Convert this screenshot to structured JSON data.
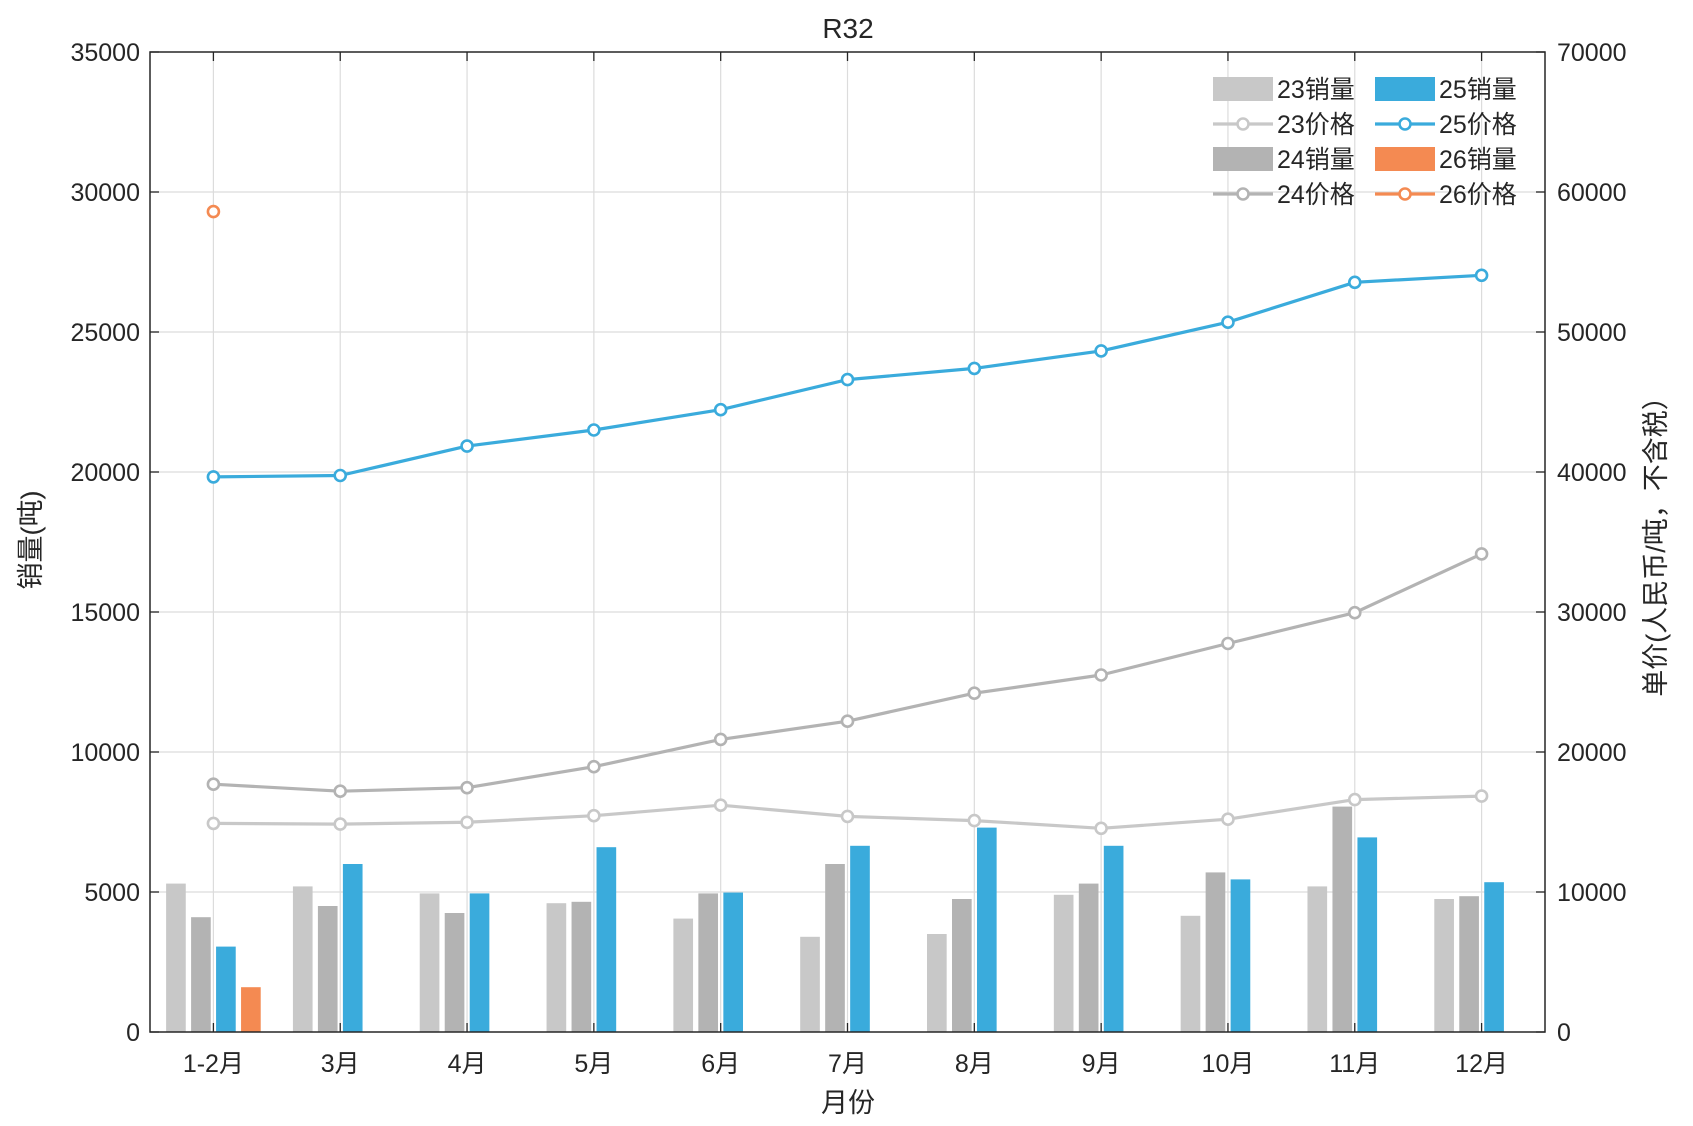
{
  "chart_data": {
    "type": "bar+line",
    "title": "R32",
    "xlabel": "月份",
    "ylabel_left": "销量(吨)",
    "ylabel_right": "单价(人民币/吨，不含税）",
    "categories": [
      "1-2月",
      "3月",
      "4月",
      "5月",
      "6月",
      "7月",
      "8月",
      "9月",
      "10月",
      "11月",
      "12月"
    ],
    "ylim_left": [
      0,
      35000
    ],
    "ylim_right": [
      0,
      70000
    ],
    "yticks_left": [
      "0",
      "5000",
      "10000",
      "15000",
      "20000",
      "25000",
      "30000",
      "35000"
    ],
    "yticks_right": [
      "0",
      "10000",
      "20000",
      "30000",
      "40000",
      "50000",
      "60000",
      "70000"
    ],
    "grid": true,
    "legend_position": "top-right",
    "bar_series": [
      {
        "name": "23销量",
        "color": "#c8c8c8",
        "values": [
          5300,
          5200,
          4950,
          4600,
          4050,
          3400,
          3500,
          4900,
          4150,
          5200,
          4750
        ]
      },
      {
        "name": "24销量",
        "color": "#b3b3b3",
        "values": [
          4100,
          4500,
          4250,
          4650,
          4950,
          6000,
          4750,
          5300,
          5700,
          8050,
          4850
        ]
      },
      {
        "name": "25销量",
        "color": "#3aabdc",
        "values": [
          3050,
          6000,
          4950,
          6600,
          4980,
          6650,
          7300,
          6650,
          5450,
          6950,
          5350
        ]
      },
      {
        "name": "26销量",
        "color": "#f48a52",
        "values": [
          1600,
          null,
          null,
          null,
          null,
          null,
          null,
          null,
          null,
          null,
          null
        ]
      }
    ],
    "line_series": [
      {
        "name": "23价格",
        "color": "#c8c8c8",
        "values": [
          14900,
          14850,
          14980,
          15450,
          16200,
          15400,
          15100,
          14550,
          15200,
          16600,
          16850
        ]
      },
      {
        "name": "24价格",
        "color": "#b3b3b3",
        "values": [
          17700,
          17200,
          17450,
          18950,
          20900,
          22200,
          24200,
          25500,
          27750,
          29950,
          34150
        ]
      },
      {
        "name": "25价格",
        "color": "#3aabdc",
        "values": [
          39650,
          39750,
          41850,
          43000,
          44450,
          46600,
          47400,
          48650,
          50700,
          53550,
          54050
        ]
      },
      {
        "name": "26价格",
        "color": "#f48a52",
        "values": [
          58600,
          null,
          null,
          null,
          null,
          null,
          null,
          null,
          null,
          null,
          null
        ]
      }
    ],
    "legend": [
      {
        "label": "23销量",
        "series": "23销量",
        "kind": "bar"
      },
      {
        "label": "25销量",
        "series": "25销量",
        "kind": "bar"
      },
      {
        "label": "23价格",
        "series": "23价格",
        "kind": "line"
      },
      {
        "label": "25价格",
        "series": "25价格",
        "kind": "line"
      },
      {
        "label": "24销量",
        "series": "24销量",
        "kind": "bar"
      },
      {
        "label": "26销量",
        "series": "26销量",
        "kind": "bar"
      },
      {
        "label": "24价格",
        "series": "24价格",
        "kind": "line"
      },
      {
        "label": "26价格",
        "series": "26价格",
        "kind": "line"
      }
    ]
  }
}
